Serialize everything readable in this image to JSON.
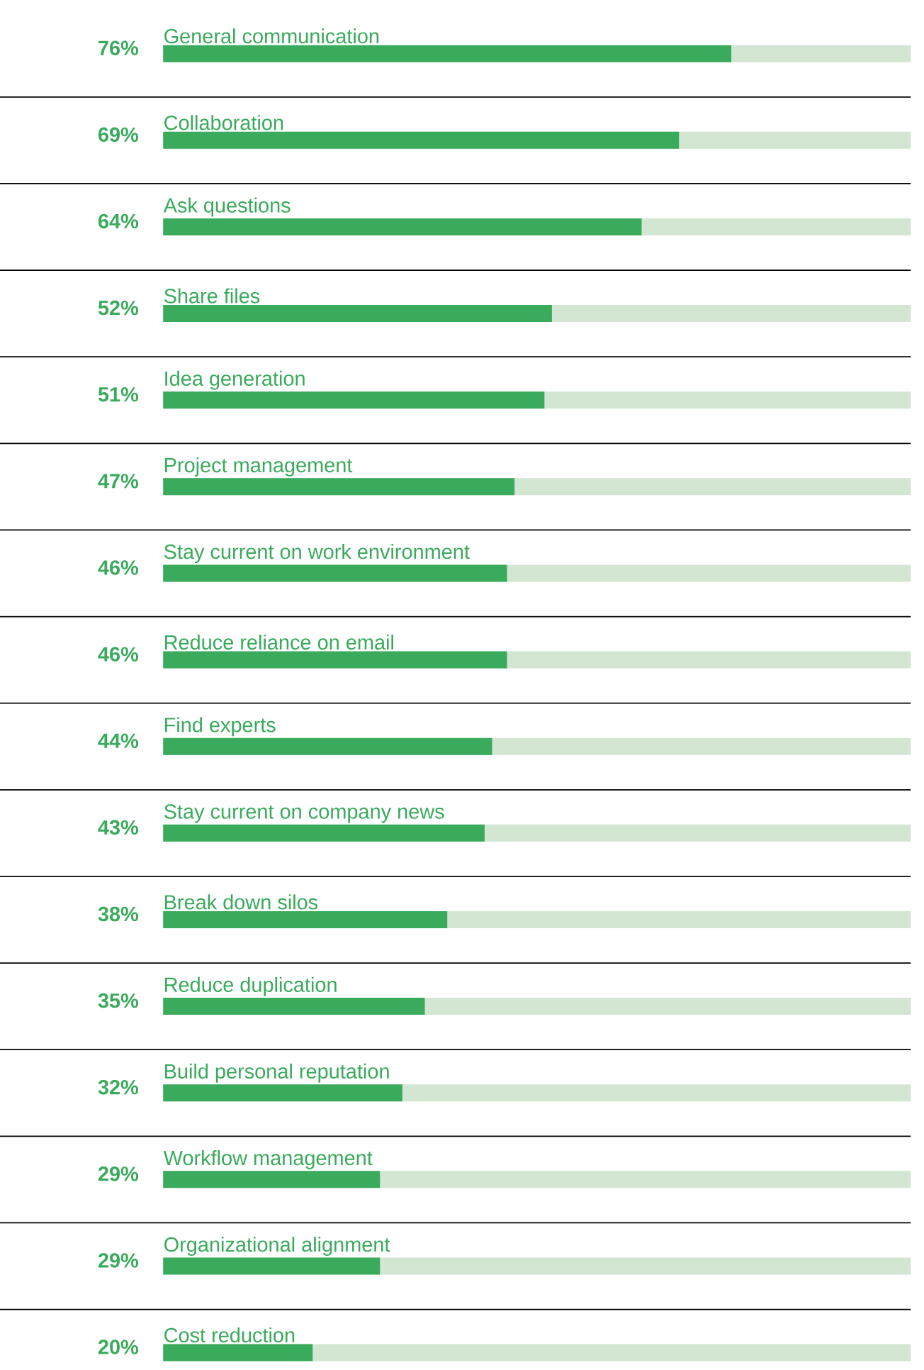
{
  "chart_data": {
    "type": "bar",
    "orientation": "horizontal",
    "categories": [
      "General communication",
      "Collaboration",
      "Ask questions",
      "Share files",
      "Idea generation",
      "Project management",
      "Stay current on work environment",
      "Reduce reliance on email",
      "Find experts",
      "Stay current on company news",
      "Break down silos",
      "Reduce duplication",
      "Build personal reputation",
      "Workflow management",
      "Organizational alignment",
      "Cost reduction"
    ],
    "values": [
      76,
      69,
      64,
      52,
      51,
      47,
      46,
      46,
      44,
      43,
      38,
      35,
      32,
      29,
      29,
      20
    ],
    "value_labels": [
      "76%",
      "69%",
      "64%",
      "52%",
      "51%",
      "47%",
      "46%",
      "46%",
      "44%",
      "43%",
      "38%",
      "35%",
      "32%",
      "29%",
      "29%",
      "20%"
    ],
    "color": "#3aaa5c",
    "xlim": [
      0,
      100
    ]
  }
}
